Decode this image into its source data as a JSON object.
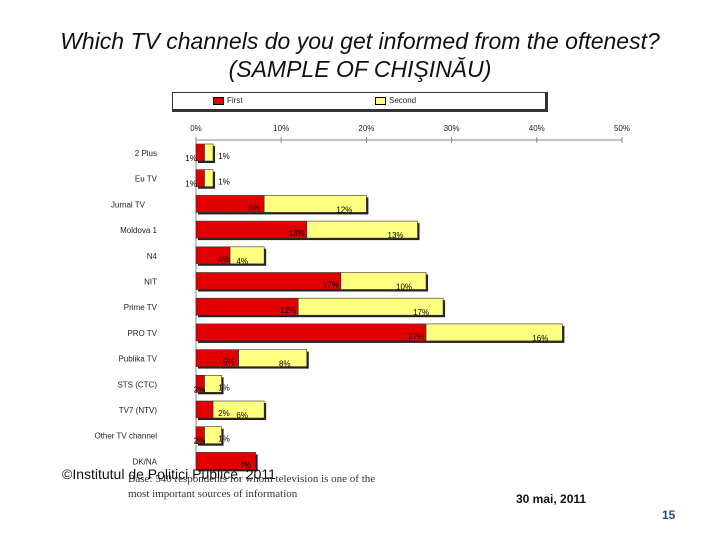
{
  "slide": {
    "title_line1": "Which TV channels do you get informed from the oftenest?",
    "title_line2": "(SAMPLE OF CHIŞINĂU)",
    "footer_left": "©Institutul de Politici Publice, 2011",
    "note": "Base: 540 respondents for whom television is one of the most important sources of information",
    "date": "30 mai, 2011",
    "page_number": "15"
  },
  "chart_data": {
    "type": "bar",
    "orientation": "horizontal",
    "stacked": true,
    "categories": [
      "2 Plus",
      "Eu TV",
      "Jurnal TV",
      "Moldova 1",
      "N4",
      "NIT",
      "Prime TV",
      "PRO TV",
      "Publika TV",
      "STS (CTC)",
      "TV7 (NTV)",
      "Other TV channel",
      "DK/NA"
    ],
    "series": [
      {
        "name": "First",
        "color": "#e00000",
        "values": [
          1,
          1,
          8,
          13,
          4,
          17,
          12,
          27,
          5,
          1,
          2,
          1,
          7
        ],
        "labels": [
          "1%",
          "1%",
          "8%",
          "13%",
          "4%",
          "17%",
          "12%",
          "27%",
          "5%",
          "1%",
          "2%",
          "1%",
          "7%"
        ]
      },
      {
        "name": "Second",
        "color": "#ffff80",
        "values": [
          1,
          1,
          12,
          13,
          4,
          10,
          17,
          16,
          8,
          2,
          6,
          2,
          0
        ],
        "labels": [
          "1%",
          "1%",
          "12%",
          "13%",
          "4%",
          "10%",
          "17%",
          "16%",
          "8%",
          "2%",
          "6%",
          "2%",
          ""
        ]
      }
    ],
    "x_ticks": [
      "0%",
      "10%",
      "20%",
      "30%",
      "40%",
      "50%"
    ],
    "xlim": [
      0,
      50
    ],
    "legend": "top"
  }
}
